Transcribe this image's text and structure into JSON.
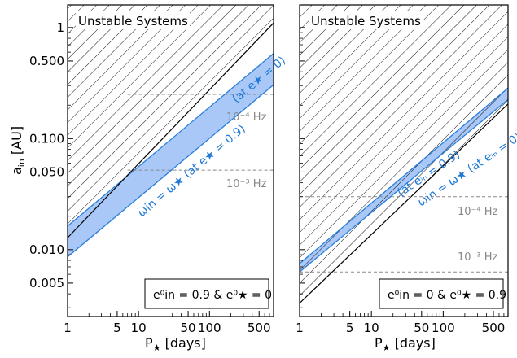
{
  "chart_data": [
    {
      "type": "area",
      "panel": "left",
      "xlabel_main": "P",
      "xlabel_sub": "★",
      "xlabel_unit": "[days]",
      "ylabel_main": "a",
      "ylabel_sub": "in",
      "ylabel_unit": "[AU]",
      "x_scale": "log",
      "y_scale": "log",
      "xlim": [
        1,
        800
      ],
      "ylim": [
        0.0025,
        1.6
      ],
      "xticks": [
        1,
        5,
        10,
        50,
        100,
        500
      ],
      "xtick_labels": [
        "1",
        "5",
        "10",
        "50",
        "100",
        "500"
      ],
      "yticks": [
        0.005,
        0.01,
        0.05,
        0.1,
        0.5,
        1
      ],
      "ytick_labels": [
        "0.005",
        "0.010",
        "0.050",
        "0.100",
        "0.500",
        "1"
      ],
      "unstable_label": "Unstable Systems",
      "unstable_boundary": {
        "x": [
          1,
          800
        ],
        "y": [
          0.0128,
          1.1
        ]
      },
      "band_upper": {
        "x": [
          1,
          800
        ],
        "y": [
          0.0163,
          0.585
        ]
      },
      "band_lower": {
        "x": [
          1,
          800
        ],
        "y": [
          0.0086,
          0.305
        ]
      },
      "band_upper_label": "(at e★ = 0)",
      "band_lower_label": "ωin = ω★ (at e★ = 0.9)",
      "freq_lines": [
        {
          "y": 0.25,
          "label": "10⁻⁴ Hz"
        },
        {
          "y": 0.052,
          "label": "10⁻³ Hz"
        }
      ],
      "legend_text": "e⁰in = 0.9  &  e⁰★ = 0",
      "colors": {
        "band_fill": "#a9c8f7",
        "band_edge": "#2a7ed8",
        "band_text": "#1f78d6",
        "hatch": "#000000",
        "freq_line": "#888888"
      }
    },
    {
      "type": "area",
      "panel": "right",
      "xlabel_main": "P",
      "xlabel_sub": "★",
      "xlabel_unit": "[days]",
      "x_scale": "log",
      "y_scale": "log",
      "xlim": [
        1,
        800
      ],
      "ylim": [
        0.0025,
        1.6
      ],
      "xticks": [
        1,
        5,
        10,
        50,
        100,
        500
      ],
      "xtick_labels": [
        "1",
        "5",
        "10",
        "50",
        "100",
        "500"
      ],
      "unstable_label": "Unstable Systems",
      "unstable_boundary": {
        "x": [
          1,
          800
        ],
        "y": [
          0.0033,
          0.205
        ]
      },
      "band_upper": {
        "x": [
          1,
          800
        ],
        "y": [
          0.0075,
          0.285
        ]
      },
      "band_lower": {
        "x": [
          1,
          800
        ],
        "y": [
          0.0063,
          0.225
        ]
      },
      "band_upper_label": "(at eᵢₙ = 0.9)",
      "band_lower_label": "ωin = ω★ (at eᵢₙ = 0)",
      "freq_lines": [
        {
          "y": 0.03,
          "label": "10⁻⁴ Hz"
        },
        {
          "y": 0.0063,
          "label": "10⁻³ Hz"
        }
      ],
      "legend_text": "e⁰in = 0  &  e⁰★ = 0.9",
      "colors": {
        "band_fill": "#a9c8f7",
        "band_edge": "#2a7ed8",
        "band_text": "#1f78d6",
        "hatch": "#000000",
        "freq_line": "#888888"
      }
    }
  ]
}
